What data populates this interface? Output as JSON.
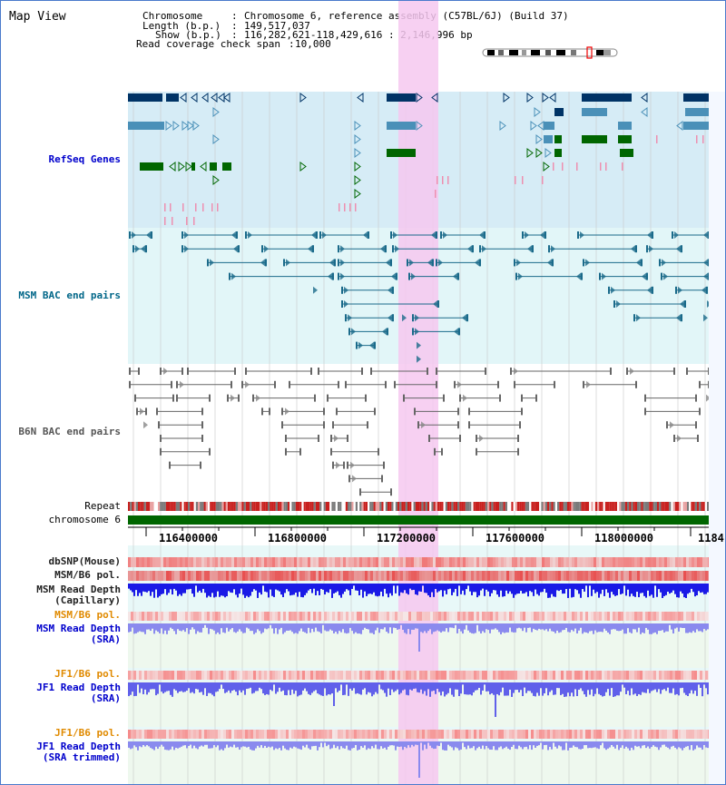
{
  "title": "Map View",
  "info": {
    "chromosome_key": "Chromosome",
    "chromosome_val": "Chromosome 6, reference assembly (C57BL/6J) (Build 37)",
    "length_key": "Length (b.p.)",
    "length_val": "149,517,037",
    "show_key": "Show (b.p.)",
    "show_val": "116,282,621-118,429,616 : 2,146,996 bp",
    "span_key": "Read coverage check span",
    "span_val": "10,000"
  },
  "tracks": {
    "refseq": "RefSeq Genes",
    "msm_bac": "MSM BAC end pairs",
    "b6n_bac": "B6N BAC end pairs",
    "repeat": "Repeat",
    "chromosome": "chromosome 6",
    "dbsnp": "dbSNP(Mouse)",
    "msm_pol": "MSM/B6 pol.",
    "msm_depth_cap_1": "MSM Read Depth",
    "msm_depth_cap_2": "(Capillary)",
    "msm_pol_2": "MSM/B6 pol.",
    "msm_depth_sra_1": "MSM Read Depth",
    "msm_depth_sra_2": "(SRA)",
    "jf1_pol": "JF1/B6 pol.",
    "jf1_depth_1": "JF1 Read Depth",
    "jf1_depth_2": "(SRA)",
    "jf1_pol_2": "JF1/B6 pol.",
    "jf1_trim_1": "JF1 Read Depth",
    "jf1_trim_2": "(SRA trimmed)"
  },
  "axis": {
    "ticks": [
      "116400000",
      "116800000",
      "117200000",
      "117600000",
      "118000000",
      "1184"
    ]
  },
  "colors": {
    "refseq_bg": "#d6ecf6",
    "bac_bg": "#e2f6f8",
    "highlight": "#f6c8f0",
    "gene_dark": "#003366",
    "gene_mid": "#4a90b8",
    "gene_green": "#006600",
    "chromosome_bar": "#006600"
  }
}
